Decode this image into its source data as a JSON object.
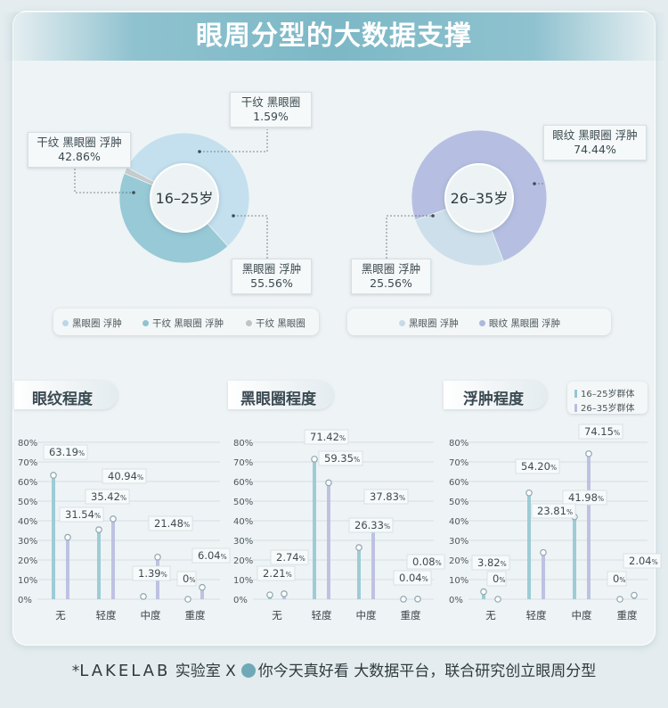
{
  "title": "眼周分型的大数据支撑",
  "pies": [
    {
      "center_label": "16–25岁",
      "slices": [
        {
          "label": "黑眼圈 浮肿",
          "value": 55.56,
          "pct": "55.56%",
          "color": "#c4e0ee"
        },
        {
          "label": "干纹 黑眼圈 浮肿",
          "value": 42.86,
          "pct": "42.86%",
          "color": "#97c9d6"
        },
        {
          "label": "干纹 黑眼圈",
          "value": 1.59,
          "pct": "1.59%",
          "color": "#c6cbcd"
        }
      ],
      "legend": [
        {
          "label": "黑眼圈 浮肿",
          "color": "#c4e0ee"
        },
        {
          "label": "干纹 黑眼圈 浮肿",
          "color": "#97c9d6"
        },
        {
          "label": "干纹 黑眼圈",
          "color": "#c6cbcd"
        }
      ]
    },
    {
      "center_label": "26–35岁",
      "slices": [
        {
          "label": "眼纹 黑眼圈 浮肿",
          "value": 74.44,
          "pct": "74.44%",
          "color": "#b6bfe2"
        },
        {
          "label": "黑眼圈 浮肿",
          "value": 25.56,
          "pct": "25.56%",
          "color": "#cddfea"
        }
      ],
      "legend": [
        {
          "label": "黑眼圈 浮肿",
          "color": "#cddfea"
        },
        {
          "label": "眼纹 黑眼圈 浮肿",
          "color": "#b6bfe2"
        }
      ]
    }
  ],
  "bar_legend": [
    {
      "label": "16–25岁群体",
      "color": "#93c8d3"
    },
    {
      "label": "26–35岁群体",
      "color": "#b8bde0"
    }
  ],
  "colors": {
    "series1": "#93c8d3",
    "series2": "#b8bde0"
  },
  "chart_data": [
    {
      "type": "bar",
      "title": "眼纹程度",
      "categories": [
        "无",
        "轻度",
        "中度",
        "重度"
      ],
      "series": [
        {
          "name": "16–25岁群体",
          "values": [
            63.19,
            35.42,
            1.39,
            0
          ]
        },
        {
          "name": "26–35岁群体",
          "values": [
            31.54,
            40.94,
            21.48,
            6.04
          ]
        }
      ],
      "ylim": [
        0,
        80
      ],
      "yticks": [
        "0%",
        "10%",
        "20%",
        "30%",
        "40%",
        "50%",
        "60%",
        "70%",
        "80%"
      ]
    },
    {
      "type": "bar",
      "title": "黑眼圈程度",
      "categories": [
        "无",
        "轻度",
        "中度",
        "重度"
      ],
      "series": [
        {
          "name": "16–25岁群体",
          "values": [
            2.21,
            71.42,
            26.33,
            0.04
          ]
        },
        {
          "name": "26–35岁群体",
          "values": [
            2.74,
            59.35,
            37.83,
            0.08
          ]
        }
      ],
      "ylim": [
        0,
        80
      ],
      "yticks": [
        "0%",
        "10%",
        "20%",
        "30%",
        "40%",
        "50%",
        "60%",
        "70%",
        "80%"
      ]
    },
    {
      "type": "bar",
      "title": "浮肿程度",
      "categories": [
        "无",
        "轻度",
        "中度",
        "重度"
      ],
      "series": [
        {
          "name": "16–25岁群体",
          "values": [
            3.82,
            54.2,
            41.98,
            0
          ]
        },
        {
          "name": "26–35岁群体",
          "values": [
            0,
            23.81,
            74.15,
            2.04
          ]
        }
      ],
      "ylim": [
        0,
        80
      ],
      "yticks": [
        "0%",
        "10%",
        "20%",
        "30%",
        "40%",
        "50%",
        "60%",
        "70%",
        "80%"
      ],
      "labels1": [
        "3.82",
        "54.20",
        "41.98",
        "0"
      ],
      "labels2": [
        "0",
        "23.81",
        "74.15",
        "2.04"
      ]
    }
  ],
  "footer": {
    "brand": "LAKELAB",
    "lab": "实验室 X",
    "partner": "你今天真好看",
    "tail": "大数据平台，联合研究创立眼周分型"
  }
}
